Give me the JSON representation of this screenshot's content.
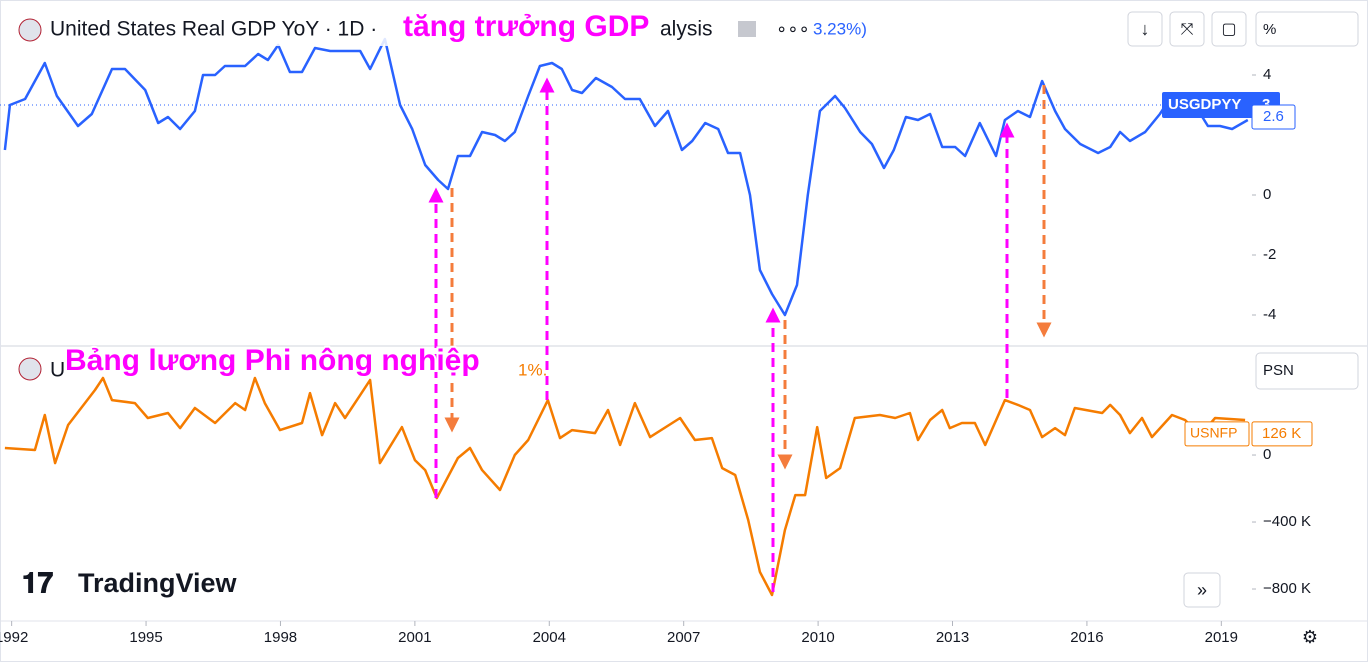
{
  "branding": "TradingView",
  "annotations": [
    "tăng trưởng GDP",
    "Bảng lương Phi nông nghiệp"
  ],
  "chart_data": [
    {
      "type": "line",
      "title": "United States Real GDP YoY · 1D ·",
      "title_tail": "alysis",
      "change": "3.23%)",
      "scale_label": "%",
      "series": [
        {
          "name": "USGDPYY",
          "color": "#2962ff",
          "x": [
            1991.85,
            1991.96,
            1992.3,
            1992.74,
            1993.01,
            1993.48,
            1993.79,
            1994.24,
            1994.53,
            1994.98,
            1995.27,
            1995.49,
            1995.76,
            1996.09,
            1996.27,
            1996.54,
            1996.76,
            1997.21,
            1997.5,
            1997.72,
            1997.95,
            1998.21,
            1998.48,
            1998.77,
            1999.11,
            1999.44,
            1999.78,
            2000.0,
            2000.33,
            2000.67,
            2000.94,
            2001.23,
            2001.52,
            2001.74,
            2001.96,
            2002.23,
            2002.5,
            2002.79,
            2003.01,
            2003.23,
            2003.53,
            2003.79,
            2004.06,
            2004.28,
            2004.51,
            2004.73,
            2005.04,
            2005.4,
            2005.69,
            2006.02,
            2006.36,
            2006.65,
            2006.96,
            2007.19,
            2007.48,
            2007.77,
            2007.99,
            2008.26,
            2008.48,
            2008.7,
            2008.97,
            2009.26,
            2009.53,
            2009.77,
            2010.04,
            2010.38,
            2010.6,
            2010.94,
            2011.2,
            2011.47,
            2011.69,
            2011.96,
            2012.23,
            2012.5,
            2012.77,
            2013.06,
            2013.28,
            2013.61,
            2013.97,
            2014.17,
            2014.46,
            2014.73,
            2015.0,
            2015.29,
            2015.51,
            2015.85,
            2016.25,
            2016.52,
            2016.74,
            2016.96,
            2017.3,
            2017.63,
            2017.85,
            2018.12,
            2018.41,
            2018.7,
            2018.97,
            2019.24,
            2019.59
          ],
          "values": [
            1.5,
            3.0,
            3.2,
            4.4,
            3.3,
            2.3,
            2.7,
            4.2,
            4.2,
            3.5,
            2.4,
            2.6,
            2.2,
            2.8,
            4.0,
            4.0,
            4.3,
            4.3,
            4.7,
            4.5,
            5.0,
            4.1,
            4.1,
            4.9,
            4.8,
            4.8,
            4.8,
            4.2,
            5.2,
            3.0,
            2.2,
            1.0,
            0.5,
            0.2,
            1.3,
            1.3,
            2.1,
            2.0,
            1.8,
            2.1,
            3.3,
            4.3,
            4.4,
            4.2,
            3.5,
            3.4,
            3.9,
            3.6,
            3.2,
            3.2,
            2.3,
            2.8,
            1.5,
            1.8,
            2.4,
            2.2,
            1.4,
            1.4,
            0,
            -2.5,
            -3.3,
            -4.0,
            -3.0,
            0,
            2.8,
            3.3,
            2.9,
            2.1,
            1.7,
            0.9,
            1.5,
            2.6,
            2.5,
            2.7,
            1.6,
            1.6,
            1.3,
            2.4,
            1.3,
            2.5,
            2.8,
            2.6,
            3.8,
            2.8,
            2.2,
            1.7,
            1.4,
            1.6,
            2.1,
            1.8,
            2.1,
            2.7,
            3.2,
            3.1,
            3.0,
            2.3,
            2.3,
            2.2,
            2.5
          ]
        }
      ],
      "xlim": [
        1991.74,
        2019.64
      ],
      "ylim": [
        -5,
        6.5
      ],
      "yticks": [
        4,
        0,
        -2,
        -4
      ],
      "last_value": 3,
      "marker_value": 2.6
    },
    {
      "type": "line",
      "title": "U",
      "change": "1%.",
      "scale_label": "PSN",
      "series": [
        {
          "name": "USNFP",
          "color": "#f57c00",
          "x": [
            1991.85,
            1992.52,
            1992.74,
            1992.97,
            1993.26,
            1993.86,
            1994.04,
            1994.24,
            1994.75,
            1995.04,
            1995.49,
            1995.76,
            1996.09,
            1996.54,
            1996.99,
            1997.21,
            1997.43,
            1997.65,
            1997.99,
            1998.48,
            1998.66,
            1998.93,
            1999.22,
            1999.44,
            1999.78,
            2000.0,
            2000.22,
            2000.71,
            2001.0,
            2001.23,
            2001.49,
            2001.96,
            2002.23,
            2002.5,
            2002.9,
            2003.23,
            2003.53,
            2003.97,
            2004.24,
            2004.51,
            2005.02,
            2005.31,
            2005.58,
            2005.91,
            2006.25,
            2006.92,
            2007.25,
            2007.63,
            2007.86,
            2008.15,
            2008.44,
            2008.7,
            2008.97,
            2009.26,
            2009.49,
            2009.71,
            2009.98,
            2010.18,
            2010.49,
            2010.82,
            2011.38,
            2011.72,
            2012.05,
            2012.23,
            2012.5,
            2012.77,
            2012.94,
            2013.21,
            2013.5,
            2013.73,
            2014.17,
            2014.46,
            2014.73,
            2015.0,
            2015.29,
            2015.51,
            2015.73,
            2016.34,
            2016.52,
            2016.74,
            2016.96,
            2017.23,
            2017.45,
            2017.9,
            2018.19,
            2018.53,
            2018.86,
            2019.53
          ],
          "values": [
            42000,
            30000,
            239000,
            -48000,
            179000,
            388000,
            460000,
            328000,
            310000,
            221000,
            251000,
            161000,
            281000,
            191000,
            310000,
            269000,
            460000,
            310000,
            149000,
            191000,
            370000,
            119000,
            310000,
            221000,
            358000,
            448000,
            -48000,
            167000,
            -30000,
            -90000,
            -257000,
            -18000,
            42000,
            -90000,
            -209000,
            0,
            90000,
            328000,
            101000,
            149000,
            131000,
            269000,
            60000,
            310000,
            107000,
            221000,
            90000,
            101000,
            -78000,
            -119000,
            -388000,
            -698000,
            -836000,
            -448000,
            -239000,
            -239000,
            167000,
            -137000,
            -78000,
            221000,
            239000,
            221000,
            251000,
            90000,
            209000,
            269000,
            161000,
            191000,
            191000,
            60000,
            328000,
            299000,
            269000,
            107000,
            161000,
            119000,
            281000,
            251000,
            299000,
            239000,
            131000,
            221000,
            107000,
            239000,
            209000,
            119000,
            221000,
            209000
          ]
        }
      ],
      "xlim": [
        1991.74,
        2019.64
      ],
      "ylim": [
        -985000,
        645000
      ],
      "yticks": [
        0,
        {
          "value": -400000,
          "label": "−400 K"
        },
        {
          "value": -800000,
          "label": "−800 K"
        }
      ],
      "xticks": [
        1992,
        1995,
        1998,
        2001,
        2004,
        2007,
        2010,
        2013,
        2016,
        2019
      ],
      "last_value": 126000,
      "last_value_label": "126 K"
    }
  ]
}
